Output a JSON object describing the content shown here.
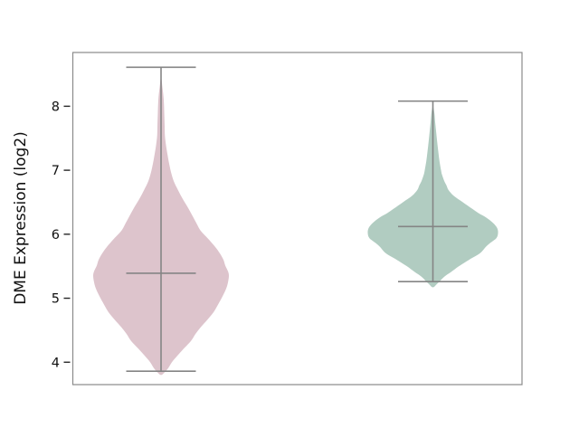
{
  "chart_data": {
    "type": "violin",
    "title": "",
    "xlabel": "",
    "ylabel": "DME Expression (log2)",
    "ylim": [
      3.65,
      8.84
    ],
    "yticks": [
      4,
      5,
      6,
      7,
      8
    ],
    "x_tick_labels": [],
    "grid": false,
    "legend": false,
    "inner_style": "whisker-line-with-median-cross",
    "line_color": "#858585",
    "axis": {
      "spine_color": "#8a8a8a",
      "tick_color": "#262626",
      "label_color": "#111111",
      "background": "#ffffff"
    },
    "series": [
      {
        "name": "left-violin",
        "fill_color": "#ddc4cc",
        "stats": {
          "median": 5.39,
          "whisker_low": 3.86,
          "whisker_high": 8.61
        },
        "density_profile": [
          [
            8.45,
            0.0
          ],
          [
            8.3,
            0.02
          ],
          [
            8.1,
            0.04
          ],
          [
            7.9,
            0.047
          ],
          [
            7.7,
            0.053
          ],
          [
            7.54,
            0.057
          ],
          [
            7.4,
            0.072
          ],
          [
            7.26,
            0.093
          ],
          [
            7.1,
            0.12
          ],
          [
            6.97,
            0.147
          ],
          [
            6.83,
            0.187
          ],
          [
            6.69,
            0.25
          ],
          [
            6.55,
            0.32
          ],
          [
            6.41,
            0.4
          ],
          [
            6.28,
            0.467
          ],
          [
            6.15,
            0.533
          ],
          [
            6.05,
            0.587
          ],
          [
            5.93,
            0.693
          ],
          [
            5.8,
            0.8
          ],
          [
            5.7,
            0.867
          ],
          [
            5.6,
            0.92
          ],
          [
            5.51,
            0.947
          ],
          [
            5.42,
            0.987
          ],
          [
            5.35,
            1.0
          ],
          [
            5.25,
            0.987
          ],
          [
            5.15,
            0.96
          ],
          [
            5.03,
            0.907
          ],
          [
            4.9,
            0.84
          ],
          [
            4.78,
            0.773
          ],
          [
            4.66,
            0.68
          ],
          [
            4.55,
            0.587
          ],
          [
            4.44,
            0.507
          ],
          [
            4.33,
            0.44
          ],
          [
            4.21,
            0.333
          ],
          [
            4.1,
            0.24
          ],
          [
            4.0,
            0.16
          ],
          [
            3.91,
            0.107
          ],
          [
            3.85,
            0.06
          ],
          [
            3.8,
            0.0
          ]
        ]
      },
      {
        "name": "right-violin",
        "fill_color": "#b1ccc1",
        "stats": {
          "median": 6.12,
          "whisker_low": 5.26,
          "whisker_high": 8.08
        },
        "density_profile": [
          [
            8.0,
            0.0
          ],
          [
            7.9,
            0.022
          ],
          [
            7.75,
            0.035
          ],
          [
            7.6,
            0.05
          ],
          [
            7.45,
            0.065
          ],
          [
            7.29,
            0.083
          ],
          [
            7.15,
            0.1
          ],
          [
            7.0,
            0.125
          ],
          [
            6.93,
            0.14
          ],
          [
            6.83,
            0.175
          ],
          [
            6.76,
            0.21
          ],
          [
            6.69,
            0.24
          ],
          [
            6.6,
            0.32
          ],
          [
            6.5,
            0.46
          ],
          [
            6.4,
            0.6
          ],
          [
            6.33,
            0.7
          ],
          [
            6.26,
            0.82
          ],
          [
            6.18,
            0.92
          ],
          [
            6.1,
            0.985
          ],
          [
            6.02,
            1.0
          ],
          [
            5.94,
            0.975
          ],
          [
            5.86,
            0.875
          ],
          [
            5.8,
            0.81
          ],
          [
            5.7,
            0.72
          ],
          [
            5.6,
            0.555
          ],
          [
            5.5,
            0.4
          ],
          [
            5.41,
            0.28
          ],
          [
            5.34,
            0.18
          ],
          [
            5.27,
            0.11
          ],
          [
            5.22,
            0.06
          ],
          [
            5.17,
            0.0
          ]
        ]
      }
    ]
  }
}
